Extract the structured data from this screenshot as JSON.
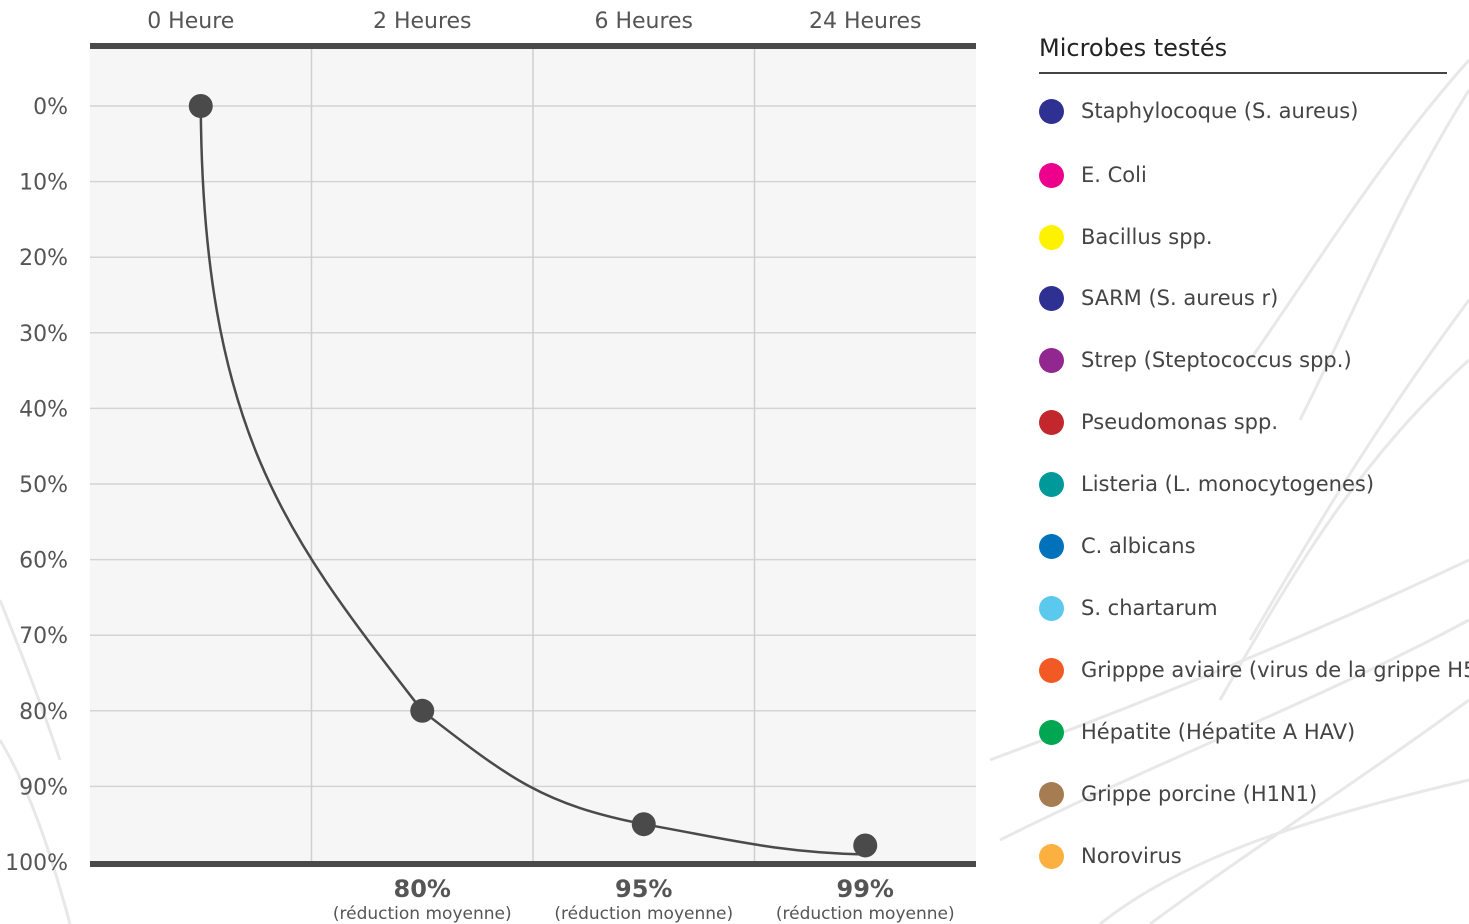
{
  "chart_data": {
    "type": "line",
    "x": [
      "0 Heure",
      "2 Heures",
      "6 Heures",
      "24 Heures"
    ],
    "series": [
      {
        "values": [
          0,
          80,
          95,
          99
        ]
      }
    ],
    "y_ticks": [
      "0%",
      "10%",
      "20%",
      "30%",
      "40%",
      "50%",
      "60%",
      "70%",
      "80%",
      "90%",
      "100%"
    ],
    "ylim": [
      0,
      100
    ],
    "y_inverted": true,
    "grid": true,
    "annotations": [
      {
        "value": "80%",
        "note": "(réduction moyenne)"
      },
      {
        "value": "95%",
        "note": "(réduction moyenne)"
      },
      {
        "value": "99%",
        "note": "(réduction moyenne)"
      }
    ],
    "line_color": "#4a4a4a"
  },
  "legend": {
    "title": "Microbes testés",
    "items": [
      {
        "label": "Staphylocoque (S. aureus)",
        "color": "#2e3192"
      },
      {
        "label": "E. Coli",
        "color": "#ec008c"
      },
      {
        "label": "Bacillus spp.",
        "color": "#fff200"
      },
      {
        "label": "SARM (S. aureus r)",
        "color": "#2e3192"
      },
      {
        "label": "Strep (Steptococcus spp.)",
        "color": "#92278f"
      },
      {
        "label": "Pseudomonas spp.",
        "color": "#c1272d"
      },
      {
        "label": "Listeria (L. monocytogenes)",
        "color": "#00999a"
      },
      {
        "label": "C. albicans",
        "color": "#0072bc"
      },
      {
        "label": "S. chartarum",
        "color": "#5bc8ee"
      },
      {
        "label": "Gripppe aviaire (virus de la grippe H5",
        "color": "#f15a24"
      },
      {
        "label": "Hépatite (Hépatite A HAV)",
        "color": "#00a651"
      },
      {
        "label": "Grippe porcine (H1N1)",
        "color": "#a67c52"
      },
      {
        "label": "Norovirus",
        "color": "#fbb040"
      }
    ]
  }
}
